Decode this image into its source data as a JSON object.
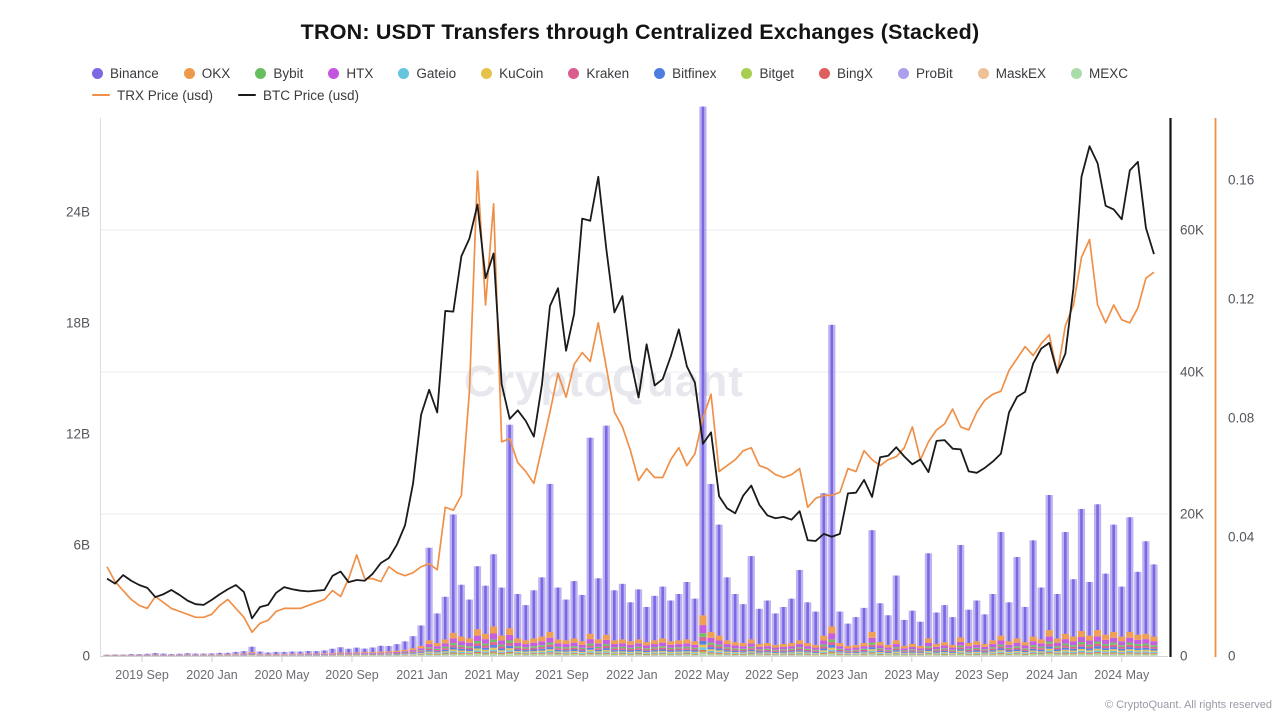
{
  "title": "TRON: USDT Transfers through Centralized Exchanges (Stacked)",
  "watermark": "CryptoQuant",
  "copyright": "© CryptoQuant. All rights reserved",
  "legend": {
    "exchanges": [
      {
        "name": "Binance",
        "color": "#7C68E4"
      },
      {
        "name": "OKX",
        "color": "#EE9A4D"
      },
      {
        "name": "Bybit",
        "color": "#68BE5E"
      },
      {
        "name": "HTX",
        "color": "#C355E0"
      },
      {
        "name": "Gateio",
        "color": "#64C5DD"
      },
      {
        "name": "KuCoin",
        "color": "#E7C24A"
      },
      {
        "name": "Kraken",
        "color": "#DD5C90"
      },
      {
        "name": "Bitfinex",
        "color": "#4D7CE2"
      },
      {
        "name": "Bitget",
        "color": "#A8CE50"
      },
      {
        "name": "BingX",
        "color": "#DF5E5E"
      },
      {
        "name": "ProBit",
        "color": "#AC9FED"
      },
      {
        "name": "MaskEX",
        "color": "#F0C096"
      },
      {
        "name": "MEXC",
        "color": "#A9DCA9"
      }
    ],
    "lines": [
      {
        "label": "TRX Price (usd)",
        "color": "#F09048"
      },
      {
        "label": "BTC Price (usd)",
        "color": "#1A1A1A"
      }
    ]
  },
  "chart_data": {
    "type": "mixed",
    "subtype": "stacked-bar with two overlay lines",
    "title": "TRON: USDT Transfers through Centralized Exchanges (Stacked)",
    "sampling": "biweekly samples from 2019-07 to 2024-07, 131 points",
    "n_points": 131,
    "x_tick_labels": [
      "2019 Sep",
      "2020 Jan",
      "2020 May",
      "2020 Sep",
      "2021 Jan",
      "2021 May",
      "2021 Sep",
      "2022 Jan",
      "2022 May",
      "2022 Sep",
      "2023 Jan",
      "2023 May",
      "2023 Sep",
      "2024 Jan",
      "2024 May"
    ],
    "x_tick_months_from_start": [
      2,
      6,
      10,
      14,
      18,
      22,
      26,
      30,
      34,
      38,
      42,
      46,
      50,
      54,
      58
    ],
    "left_axis": {
      "unit": "USDT billions",
      "tick_values": [
        0,
        6,
        12,
        18,
        24
      ],
      "tick_labels": [
        "0",
        "6B",
        "12B",
        "18B",
        "24B"
      ],
      "max": 29.1
    },
    "btc_axis": {
      "unit": "usd thousands",
      "tick_values": [
        0,
        20,
        40,
        60
      ],
      "tick_labels": [
        "0",
        "20K",
        "40K",
        "60K"
      ],
      "max": 75.8,
      "grid": true
    },
    "trx_axis": {
      "unit": "usd",
      "tick_values": [
        0,
        0.04,
        0.08,
        0.12,
        0.16
      ],
      "tick_labels": [
        "0",
        "0.04",
        "0.08",
        "0.12",
        "0.16"
      ],
      "max": 0.181
    },
    "stack_order_bottom_to_top": [
      "MEXC",
      "MaskEX",
      "ProBit",
      "Bitget",
      "BingX",
      "Gateio",
      "KuCoin",
      "Bitfinex",
      "Kraken",
      "Bybit",
      "HTX",
      "OKX",
      "Binance"
    ],
    "binance_values_B": [
      0.02,
      0.03,
      0.02,
      0.04,
      0.03,
      0.05,
      0.08,
      0.06,
      0.04,
      0.05,
      0.07,
      0.06,
      0.05,
      0.06,
      0.08,
      0.07,
      0.1,
      0.12,
      0.28,
      0.12,
      0.09,
      0.11,
      0.1,
      0.12,
      0.11,
      0.13,
      0.12,
      0.15,
      0.22,
      0.28,
      0.21,
      0.25,
      0.19,
      0.24,
      0.31,
      0.28,
      0.35,
      0.45,
      0.65,
      1.1,
      5.0,
      1.6,
      2.3,
      6.4,
      2.8,
      2.1,
      3.4,
      2.6,
      3.9,
      2.6,
      11.0,
      2.4,
      1.9,
      2.6,
      3.2,
      8.0,
      2.8,
      2.2,
      3.1,
      2.5,
      10.6,
      3.3,
      11.3,
      2.7,
      3.0,
      2.1,
      2.7,
      1.9,
      2.4,
      2.8,
      2.2,
      2.5,
      3.1,
      2.3,
      27.5,
      8.0,
      6.0,
      3.4,
      2.6,
      2.1,
      4.5,
      1.9,
      2.3,
      1.7,
      2.0,
      2.4,
      3.8,
      2.2,
      1.8,
      7.7,
      16.3,
      1.7,
      1.2,
      1.5,
      1.9,
      5.5,
      2.1,
      1.6,
      3.5,
      1.4,
      1.8,
      1.3,
      4.6,
      1.7,
      2.0,
      1.5,
      5.0,
      1.8,
      2.2,
      1.6,
      2.5,
      5.6,
      2.1,
      4.4,
      1.9,
      5.2,
      2.8,
      7.3,
      2.4,
      5.5,
      3.1,
      6.6,
      2.9,
      6.8,
      3.3,
      5.8,
      2.7,
      6.2,
      3.4,
      5.0,
      3.9
    ],
    "others_total_values_B": [
      0.05,
      0.05,
      0.06,
      0.06,
      0.07,
      0.07,
      0.08,
      0.07,
      0.06,
      0.07,
      0.08,
      0.07,
      0.08,
      0.08,
      0.09,
      0.1,
      0.12,
      0.14,
      0.22,
      0.12,
      0.1,
      0.11,
      0.12,
      0.12,
      0.13,
      0.14,
      0.14,
      0.15,
      0.17,
      0.19,
      0.18,
      0.2,
      0.21,
      0.22,
      0.24,
      0.26,
      0.29,
      0.34,
      0.42,
      0.55,
      0.85,
      0.7,
      0.9,
      1.25,
      1.05,
      0.95,
      1.45,
      1.2,
      1.6,
      1.1,
      1.5,
      0.95,
      0.85,
      0.95,
      1.05,
      1.3,
      0.9,
      0.85,
      0.95,
      0.8,
      1.2,
      0.9,
      1.15,
      0.85,
      0.9,
      0.8,
      0.9,
      0.75,
      0.85,
      0.95,
      0.8,
      0.85,
      0.9,
      0.8,
      2.2,
      1.3,
      1.1,
      0.85,
      0.75,
      0.7,
      0.9,
      0.65,
      0.7,
      0.6,
      0.65,
      0.7,
      0.85,
      0.7,
      0.6,
      1.1,
      1.6,
      0.7,
      0.55,
      0.6,
      0.7,
      1.3,
      0.75,
      0.6,
      0.85,
      0.55,
      0.65,
      0.55,
      0.95,
      0.65,
      0.75,
      0.6,
      1.0,
      0.7,
      0.8,
      0.65,
      0.85,
      1.1,
      0.8,
      0.95,
      0.75,
      1.05,
      0.9,
      1.4,
      0.95,
      1.2,
      1.05,
      1.35,
      1.1,
      1.4,
      1.15,
      1.3,
      1.05,
      1.3,
      1.15,
      1.2,
      1.05
    ],
    "others_shares": {
      "OKX": 0.24,
      "HTX": 0.2,
      "Bitfinex": 0.09,
      "Kraken": 0.1,
      "Bybit": 0.09,
      "KuCoin": 0.07,
      "Gateio": 0.06,
      "Bitget": 0.045,
      "BingX": 0.04,
      "MEXC": 0.035,
      "ProBit": 0.02,
      "MaskEX": 0.01
    },
    "btc_price_k": [
      10.9,
      10.2,
      11.4,
      10.6,
      10.0,
      9.6,
      8.3,
      8.7,
      9.3,
      8.6,
      7.8,
      7.3,
      7.2,
      7.9,
      8.7,
      9.4,
      10.0,
      9.0,
      5.3,
      6.9,
      7.2,
      8.9,
      9.7,
      9.4,
      9.2,
      9.1,
      9.2,
      9.3,
      11.3,
      11.9,
      10.4,
      10.7,
      10.6,
      11.6,
      13.1,
      13.8,
      15.7,
      18.4,
      24.3,
      34.0,
      37.5,
      34.3,
      48.6,
      48.5,
      56.3,
      58.8,
      63.6,
      53.2,
      56.7,
      38.3,
      33.4,
      34.6,
      33.1,
      30.9,
      38.2,
      49.3,
      51.8,
      43.0,
      48.2,
      61.6,
      61.3,
      67.5,
      57.3,
      48.4,
      50.7,
      41.8,
      36.4,
      43.9,
      38.1,
      39.0,
      42.2,
      46.0,
      40.8,
      38.5,
      29.9,
      31.5,
      22.5,
      20.8,
      20.1,
      22.6,
      24.0,
      21.3,
      19.8,
      19.4,
      19.6,
      19.2,
      20.4,
      16.3,
      16.2,
      17.2,
      16.8,
      17.2,
      22.9,
      23.0,
      24.8,
      22.4,
      28.0,
      28.2,
      29.4,
      28.1,
      27.0,
      27.7,
      25.9,
      30.3,
      30.4,
      29.2,
      29.1,
      26.0,
      25.8,
      26.5,
      27.4,
      28.5,
      34.3,
      36.5,
      37.2,
      41.2,
      43.3,
      44.1,
      39.9,
      42.6,
      51.8,
      67.5,
      71.8,
      69.4,
      63.4,
      62.9,
      61.5,
      68.4,
      69.6,
      60.3,
      56.6
    ],
    "trx_price_usd": [
      0.03,
      0.025,
      0.022,
      0.019,
      0.017,
      0.016,
      0.02,
      0.018,
      0.016,
      0.015,
      0.014,
      0.013,
      0.013,
      0.014,
      0.017,
      0.019,
      0.016,
      0.013,
      0.008,
      0.011,
      0.012,
      0.015,
      0.016,
      0.016,
      0.016,
      0.017,
      0.018,
      0.019,
      0.022,
      0.02,
      0.026,
      0.034,
      0.026,
      0.026,
      0.025,
      0.03,
      0.028,
      0.027,
      0.028,
      0.03,
      0.031,
      0.029,
      0.05,
      0.049,
      0.054,
      0.089,
      0.163,
      0.118,
      0.152,
      0.072,
      0.073,
      0.065,
      0.062,
      0.058,
      0.07,
      0.082,
      0.095,
      0.087,
      0.098,
      0.102,
      0.099,
      0.112,
      0.097,
      0.082,
      0.077,
      0.069,
      0.059,
      0.063,
      0.06,
      0.06,
      0.066,
      0.07,
      0.064,
      0.068,
      0.08,
      0.088,
      0.062,
      0.064,
      0.066,
      0.069,
      0.07,
      0.064,
      0.063,
      0.061,
      0.06,
      0.061,
      0.063,
      0.05,
      0.053,
      0.054,
      0.054,
      0.055,
      0.063,
      0.062,
      0.069,
      0.066,
      0.064,
      0.066,
      0.067,
      0.07,
      0.077,
      0.066,
      0.072,
      0.076,
      0.078,
      0.083,
      0.077,
      0.076,
      0.082,
      0.086,
      0.088,
      0.089,
      0.096,
      0.1,
      0.104,
      0.101,
      0.105,
      0.108,
      0.095,
      0.111,
      0.118,
      0.134,
      0.14,
      0.118,
      0.112,
      0.118,
      0.113,
      0.112,
      0.117,
      0.127,
      0.129
    ]
  }
}
